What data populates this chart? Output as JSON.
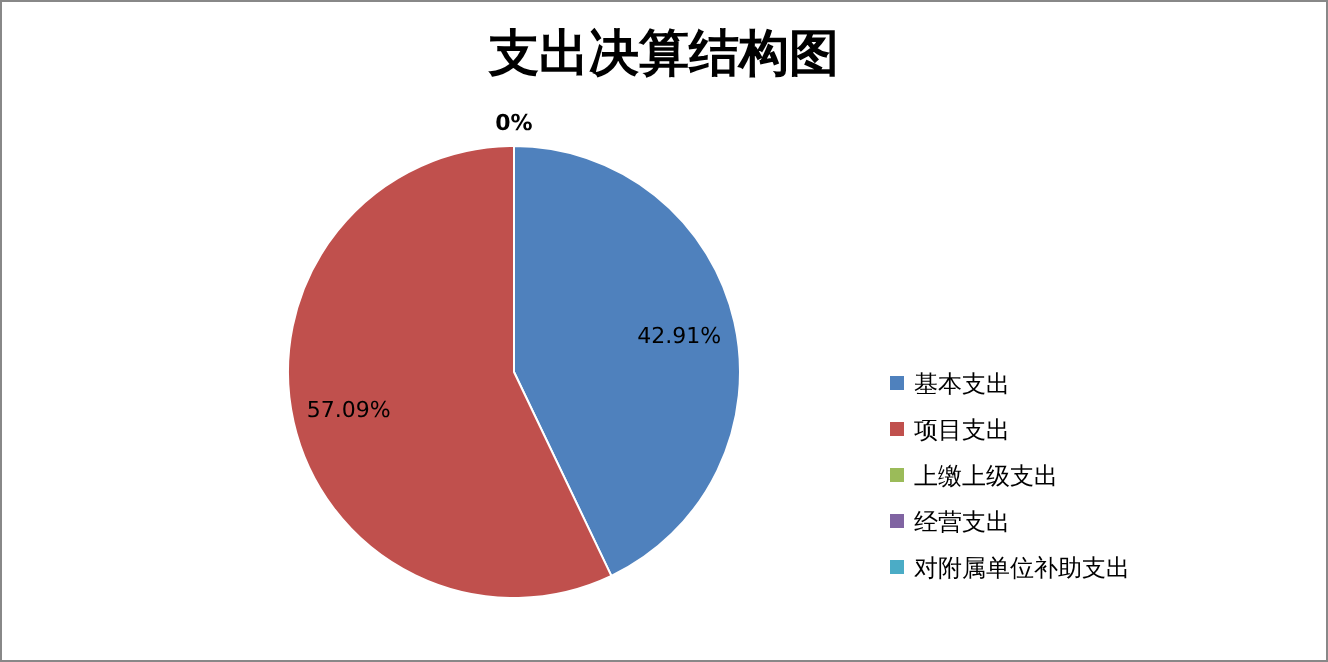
{
  "chart_data": {
    "type": "pie",
    "title": "支出决算结构图",
    "categories": [
      "基本支出",
      "项目支出",
      "上缴上级支出",
      "经营支出",
      "对附属单位补助支出"
    ],
    "values": [
      42.91,
      57.09,
      0,
      0,
      0
    ],
    "colors": [
      "#4f81bd",
      "#c0504d",
      "#9bbb59",
      "#8064a2",
      "#4bacc6"
    ],
    "value_labels": [
      "42.91%",
      "57.09%",
      "0%",
      null,
      null
    ],
    "legend": "right"
  }
}
